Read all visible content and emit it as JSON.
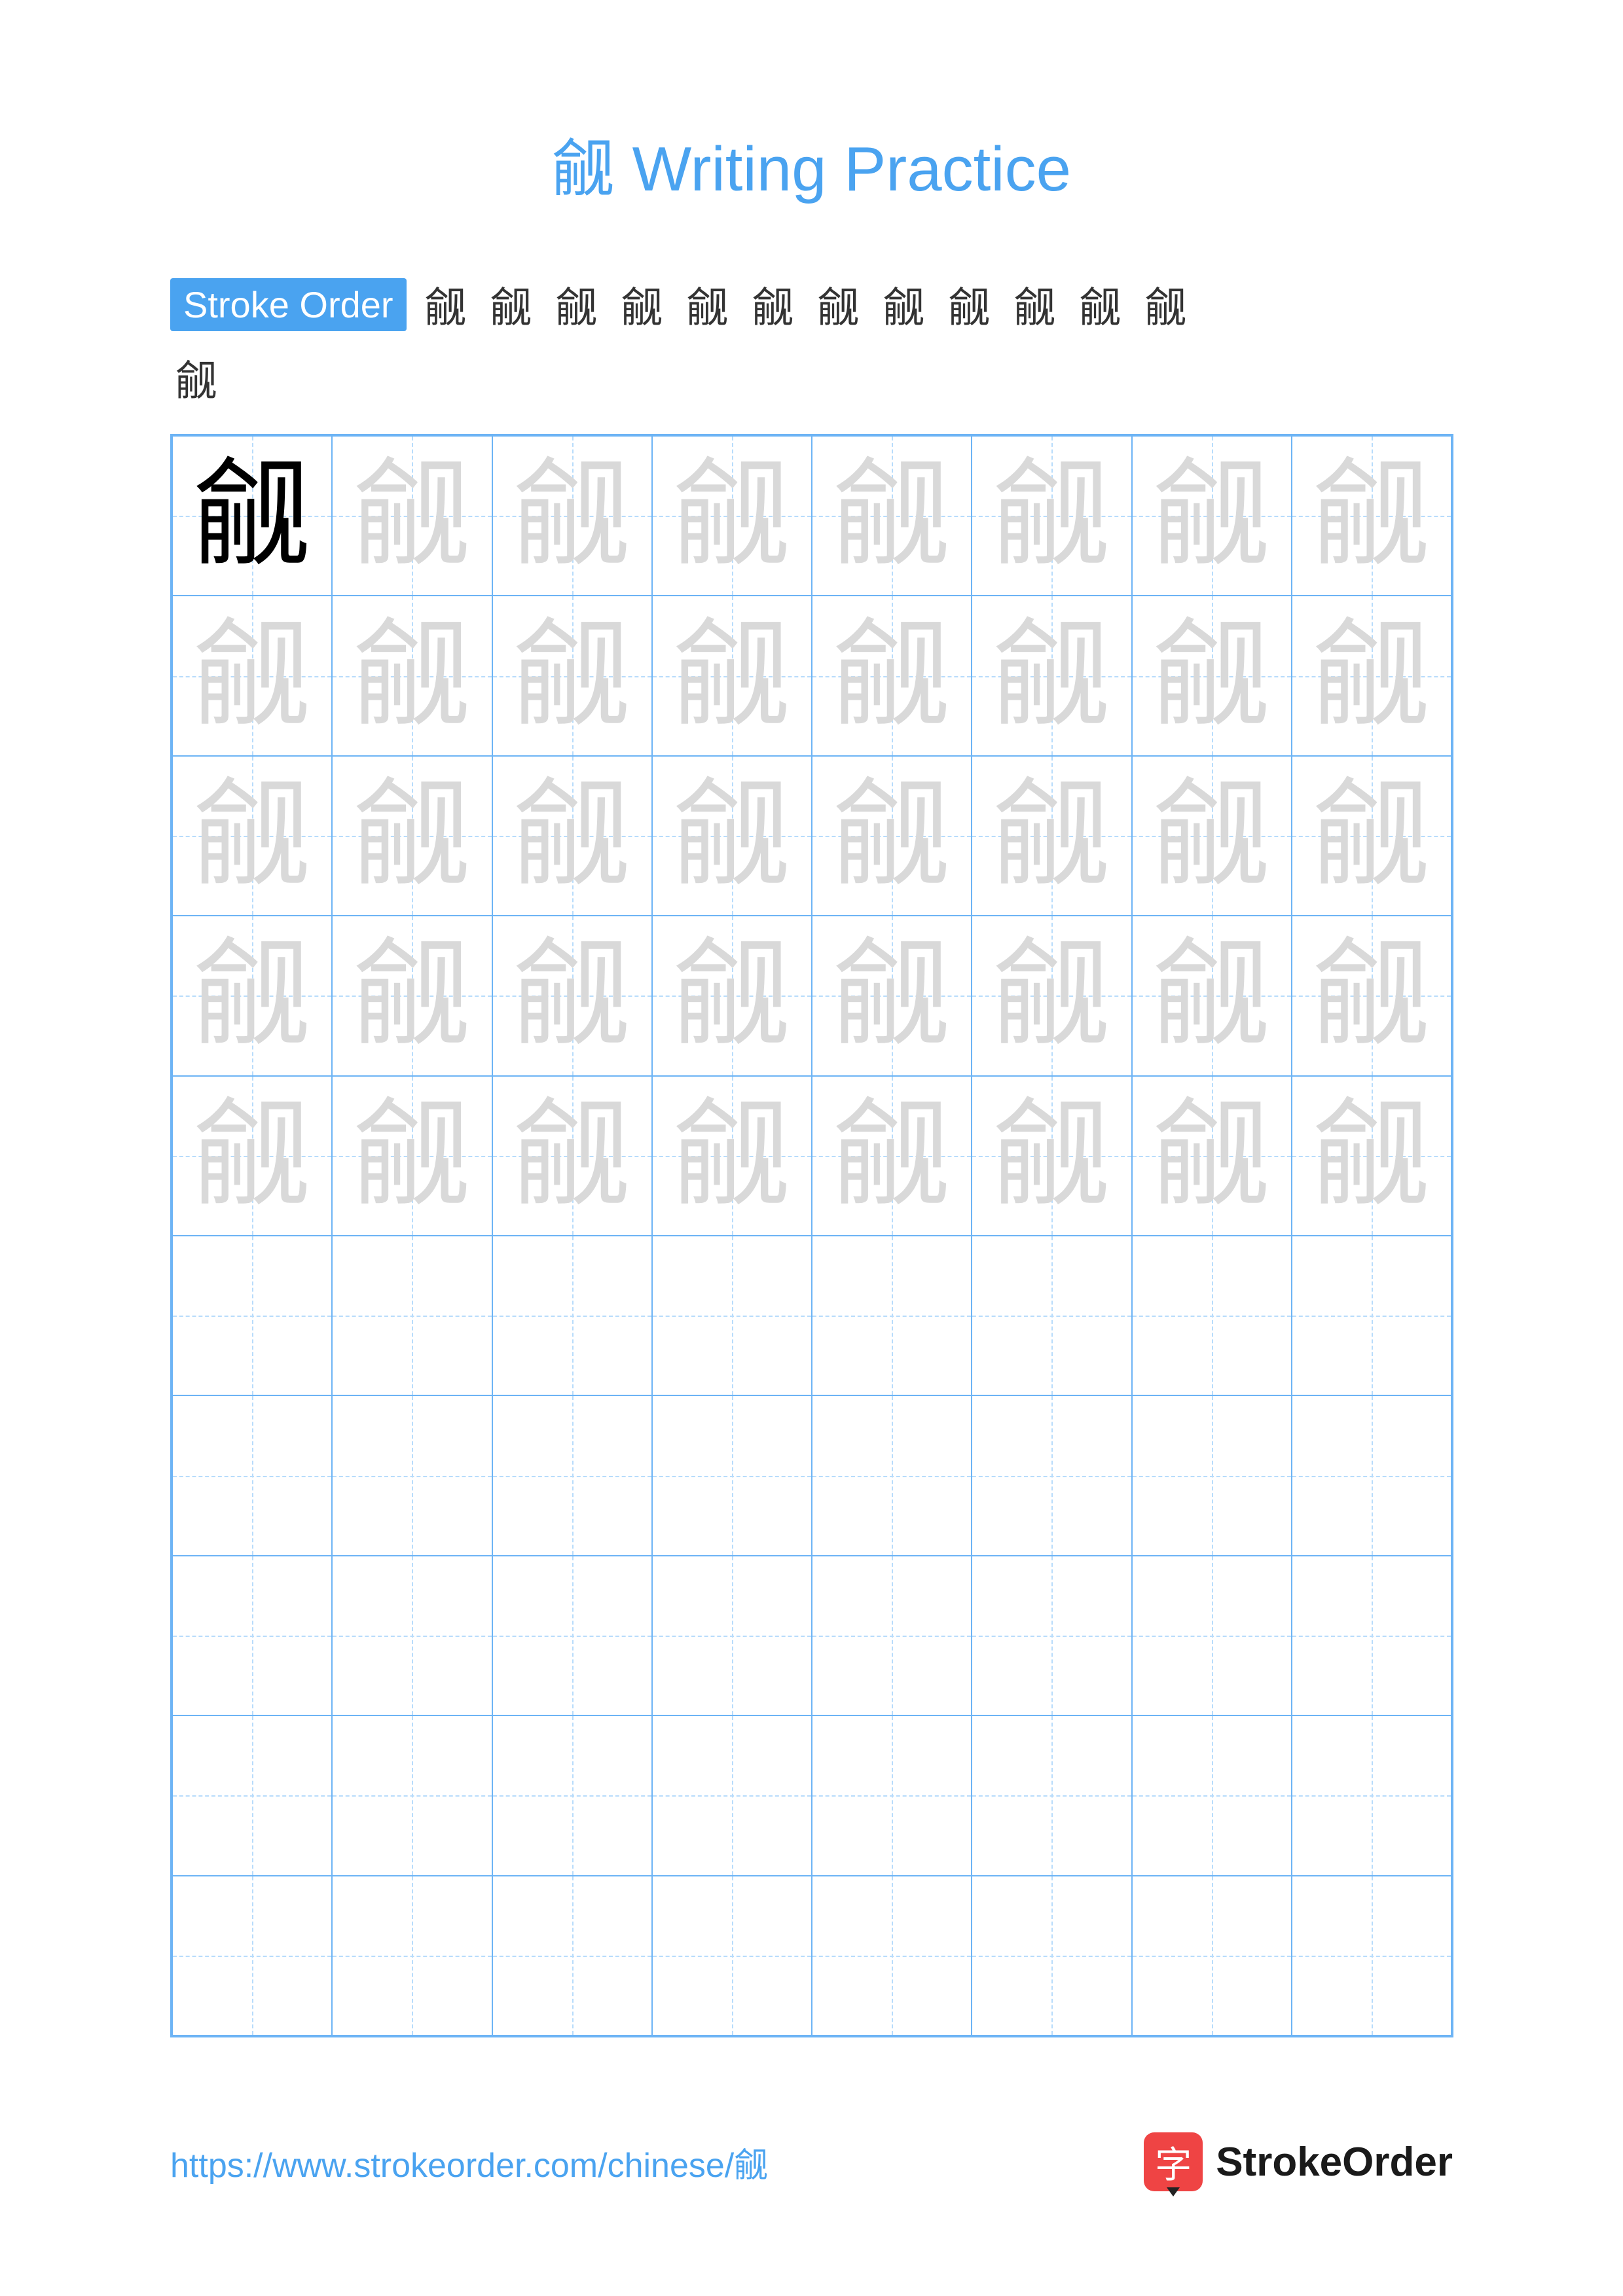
{
  "title": "觎 Writing Practice",
  "title_color": "#4aa3f0",
  "character": "觎",
  "stroke_label": "Stroke Order",
  "stroke_label_bg": "#4aa3f0",
  "stroke_count": 13,
  "grid": {
    "rows": 10,
    "cols": 8,
    "traced_rows": 5,
    "border_color": "#6db4f5",
    "guide_color": "#b8dcfb",
    "model_color": "#000000",
    "trace_color": "#d9d9d9"
  },
  "footer": {
    "url": "https://www.strokeorder.com/chinese/觎",
    "url_color": "#4aa3f0",
    "logo_icon_char": "字",
    "logo_icon_bg": "#ef4444",
    "logo_text": "StrokeOrder",
    "logo_text_color": "#1a1a1a"
  }
}
